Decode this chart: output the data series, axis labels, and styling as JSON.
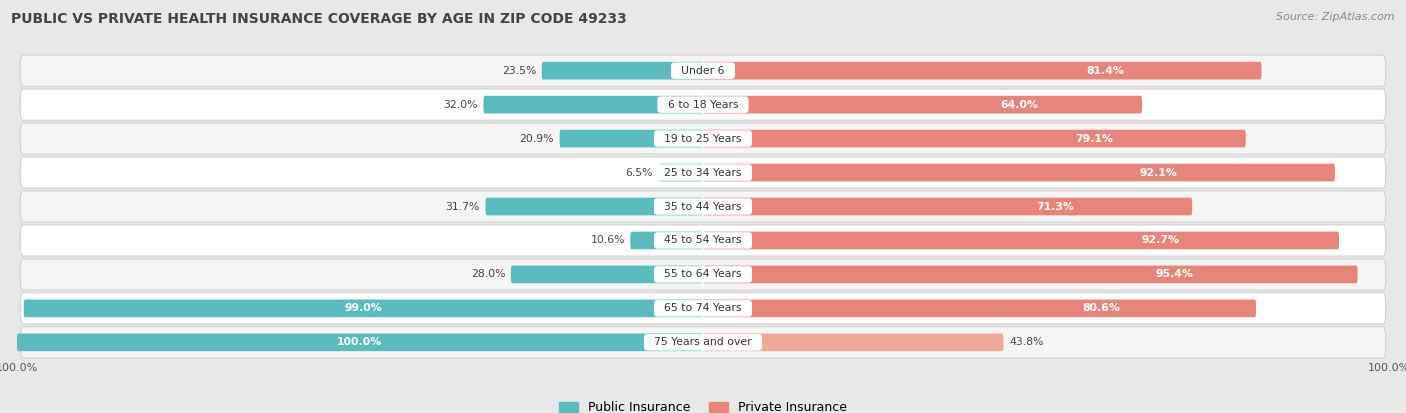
{
  "title": "PUBLIC VS PRIVATE HEALTH INSURANCE COVERAGE BY AGE IN ZIP CODE 49233",
  "source": "Source: ZipAtlas.com",
  "categories": [
    "Under 6",
    "6 to 18 Years",
    "19 to 25 Years",
    "25 to 34 Years",
    "35 to 44 Years",
    "45 to 54 Years",
    "55 to 64 Years",
    "65 to 74 Years",
    "75 Years and over"
  ],
  "public": [
    23.5,
    32.0,
    20.9,
    6.5,
    31.7,
    10.6,
    28.0,
    99.0,
    100.0
  ],
  "private": [
    81.4,
    64.0,
    79.1,
    92.1,
    71.3,
    92.7,
    95.4,
    80.6,
    43.8
  ],
  "public_color": "#5bbcbf",
  "private_color": "#e8857a",
  "private_color_light": "#f0a898",
  "bg_color": "#e8e8e8",
  "row_bg_odd": "#f5f5f5",
  "row_bg_even": "#ffffff",
  "row_border": "#d0d0d0",
  "title_color": "#444444",
  "source_color": "#888888",
  "max_val": 100.0,
  "bar_height": 0.52,
  "legend_label_public": "Public Insurance",
  "legend_label_private": "Private Insurance"
}
